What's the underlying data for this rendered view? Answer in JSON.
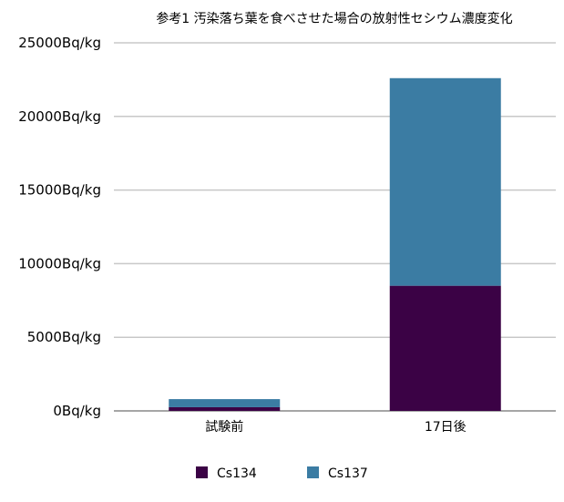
{
  "chart_data": {
    "type": "bar",
    "stacked": true,
    "title": "参考1 汚染落ち葉を食べさせた場合の放射性セシウム濃度変化",
    "categories": [
      "試験前",
      "17日後"
    ],
    "series": [
      {
        "name": "Cs134",
        "values": [
          250,
          8500
        ],
        "color": "#3b0245"
      },
      {
        "name": "Cs137",
        "values": [
          550,
          14100
        ],
        "color": "#3b7ca3"
      }
    ],
    "ylim": [
      0,
      25000
    ],
    "yticks": [
      0,
      5000,
      10000,
      15000,
      20000,
      25000
    ],
    "ytick_labels": [
      "0Bq/kg",
      "5000Bq/kg",
      "10000Bq/kg",
      "15000Bq/kg",
      "20000Bq/kg",
      "25000Bq/kg"
    ],
    "grid": true,
    "legend_position": "bottom-center"
  }
}
